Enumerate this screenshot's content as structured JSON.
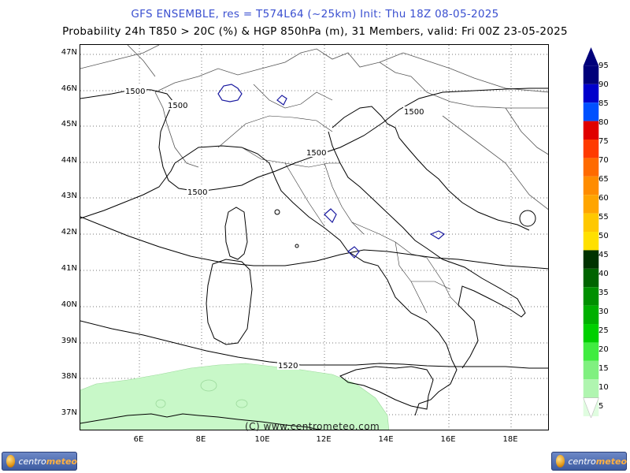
{
  "header": {
    "line1": "GFS ENSEMBLE, res = T574L64 (~25km)    Init: Thu 18Z 08-05-2025",
    "line2": "Probability 24h T850 > 20C (%) & HGP 850hPa (m), 31 Members, valid: Fri 00Z 23-05-2025"
  },
  "map": {
    "lat_labels": [
      "47N",
      "46N",
      "45N",
      "44N",
      "43N",
      "42N",
      "41N",
      "40N",
      "39N",
      "38N",
      "37N"
    ],
    "lon_labels": [
      "6E",
      "8E",
      "10E",
      "12E",
      "14E",
      "16E",
      "18E"
    ],
    "contour_labels": [
      "1500",
      "1500",
      "1500",
      "1500",
      "1500",
      "1520"
    ],
    "copyright": "(C) www.centrometeo.com",
    "probability_color": "#c8f8c8",
    "coast_color": "#000000",
    "contour_color": "#000000",
    "border_color": "#555555",
    "highlight_color": "#1a1aa0"
  },
  "legend": {
    "values": [
      "95",
      "90",
      "85",
      "80",
      "75",
      "70",
      "65",
      "60",
      "55",
      "50",
      "45",
      "40",
      "35",
      "30",
      "25",
      "20",
      "15",
      "10",
      "5"
    ],
    "colors": [
      "#00007a",
      "#0000cc",
      "#0050ff",
      "#e00000",
      "#ff3a00",
      "#ff6a00",
      "#ff8c00",
      "#ffa500",
      "#ffc800",
      "#ffe000",
      "#003300",
      "#006400",
      "#009000",
      "#00b000",
      "#00d000",
      "#40ec40",
      "#80f080",
      "#b0f5b0",
      "#e0fde0"
    ]
  },
  "logos": {
    "left_text_a": "centro",
    "left_text_b": "meteo",
    "right_text_a": "centro",
    "right_text_b": "meteo"
  }
}
